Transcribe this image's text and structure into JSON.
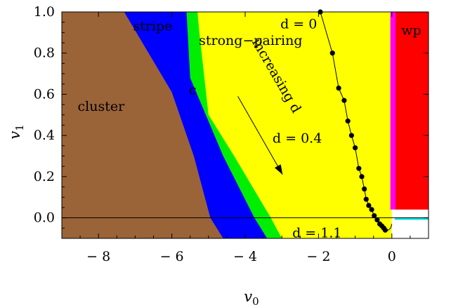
{
  "chart_data": {
    "type": "area",
    "title": "",
    "xlabel": "v",
    "xlabel_sub": "0",
    "ylabel": "v",
    "ylabel_sub": "1",
    "xlim": [
      -9,
      1
    ],
    "ylim": [
      -0.1,
      1.0
    ],
    "xticks": [
      -8,
      -6,
      -4,
      -2,
      0
    ],
    "xtick_labels": [
      "− 8",
      "− 6",
      "− 4",
      "− 2",
      "0"
    ],
    "yticks": [
      0.0,
      0.2,
      0.4,
      0.6,
      0.8,
      1.0
    ],
    "ytick_labels": [
      "0.0",
      "0.2",
      "0.4",
      "0.6",
      "0.8",
      "1.0"
    ],
    "grid": false,
    "regions": [
      {
        "name": "strong-pairing",
        "label": "strong−pairing",
        "color": "#ffff00",
        "polygon": [
          [
            -9,
            -0.1
          ],
          [
            0,
            -0.1
          ],
          [
            0,
            1.0
          ],
          [
            -9,
            1.0
          ]
        ],
        "label_at": [
          -3.85,
          0.84
        ]
      },
      {
        "name": "c",
        "label": "c",
        "color": "#00ee00",
        "polygon": [
          [
            -9,
            -0.1
          ],
          [
            -3.0,
            -0.1
          ],
          [
            -3.3,
            0.0
          ],
          [
            -4.3,
            0.3
          ],
          [
            -5.0,
            0.5
          ],
          [
            -5.25,
            0.9
          ],
          [
            -5.3,
            1.0
          ],
          [
            -9,
            1.0
          ]
        ],
        "label_at": [
          -5.43,
          0.6
        ]
      },
      {
        "name": "stripe",
        "label": "stripe",
        "color": "#0000ff",
        "polygon": [
          [
            -9,
            -0.1
          ],
          [
            -3.4,
            -0.1
          ],
          [
            -3.75,
            0.0
          ],
          [
            -4.6,
            0.3
          ],
          [
            -5.5,
            0.68
          ],
          [
            -5.6,
            1.0
          ],
          [
            -9,
            1.0
          ]
        ],
        "label_at": [
          -6.52,
          0.91
        ]
      },
      {
        "name": "cluster",
        "label": "cluster",
        "color": "#9b6338",
        "polygon": [
          [
            -9,
            -0.1
          ],
          [
            -4.6,
            -0.1
          ],
          [
            -4.95,
            0.0
          ],
          [
            -5.4,
            0.3
          ],
          [
            -6.0,
            0.61
          ],
          [
            -7.3,
            1.0
          ],
          [
            -9,
            1.0
          ]
        ],
        "label_at": [
          -7.93,
          0.52
        ]
      },
      {
        "name": "wp",
        "label": "wp",
        "color": "#ff0000",
        "polygon": [
          [
            0.1,
            0.04
          ],
          [
            1,
            0.04
          ],
          [
            1,
            1.0
          ],
          [
            0.1,
            1.0
          ]
        ],
        "label_at": [
          0.53,
          0.89
        ]
      }
    ],
    "boundary_strips": [
      {
        "name": "cyan",
        "color": "#00e5e5",
        "polygon": [
          [
            0.08,
            -0.01
          ],
          [
            1,
            -0.01
          ],
          [
            1,
            0.0
          ],
          [
            0.08,
            0.0
          ]
        ]
      },
      {
        "name": "magenta",
        "color": "#ff00ff",
        "polygon": [
          [
            -0.04,
            0.04
          ],
          [
            0.1,
            0.04
          ],
          [
            0.1,
            1.0
          ],
          [
            -0.04,
            1.0
          ]
        ]
      }
    ],
    "white_patch": {
      "color": "#ffffff",
      "polygon": [
        [
          0,
          -0.1
        ],
        [
          1,
          -0.1
        ],
        [
          1,
          -0.01
        ],
        [
          0.08,
          -0.01
        ],
        [
          0.08,
          0.04
        ],
        [
          0,
          0.04
        ]
      ]
    },
    "baseline_y": 0.0,
    "series": [
      {
        "type": "line+markers",
        "color": "#000000",
        "x": [
          -1.95,
          -1.62,
          -1.45,
          -1.3,
          -1.2,
          -1.1,
          -1.0,
          -0.9,
          -0.82,
          -0.75,
          -0.7,
          -0.63,
          -0.55,
          -0.48,
          -0.4,
          -0.33,
          -0.27,
          -0.22,
          -0.18
        ],
        "y": [
          1.0,
          0.8,
          0.63,
          0.57,
          0.47,
          0.4,
          0.34,
          0.24,
          0.2,
          0.14,
          0.09,
          0.06,
          0.04,
          0.01,
          -0.01,
          -0.03,
          -0.04,
          -0.05,
          -0.06
        ]
      }
    ],
    "tail_curve": {
      "x": [
        -0.18,
        -0.1,
        -0.03,
        0.0
      ],
      "y": [
        -0.06,
        -0.06,
        -0.05,
        -0.03
      ]
    },
    "annotations": [
      {
        "text": "d = 0",
        "x": -2.54,
        "y": 0.94
      },
      {
        "text": "d = 0.4",
        "x": -2.58,
        "y": 0.385
      },
      {
        "text": "d = 1.1",
        "x": -2.04,
        "y": -0.075
      }
    ],
    "arrow_text": {
      "text": "increasing d",
      "x": -3.25,
      "y": 0.68,
      "angle": 60
    },
    "arrow": {
      "from": [
        -4.2,
        0.59
      ],
      "to": [
        -2.98,
        0.21
      ]
    }
  }
}
